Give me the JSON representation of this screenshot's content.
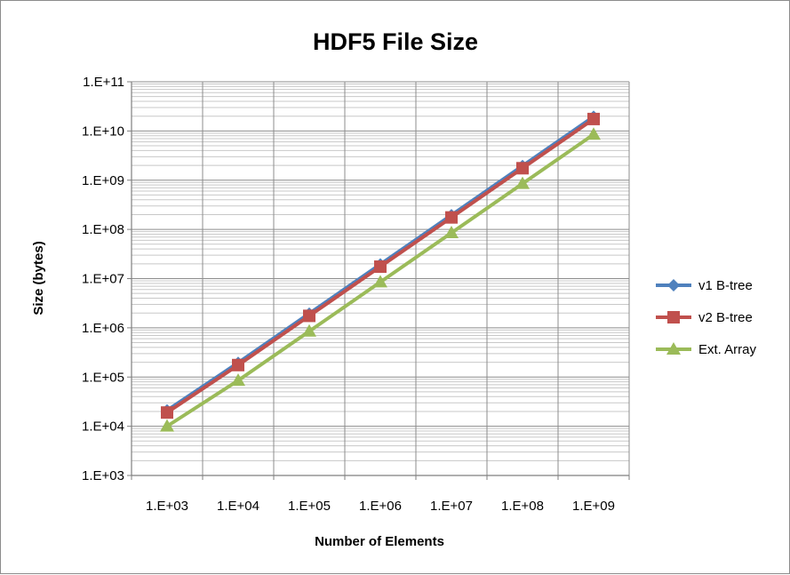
{
  "chart_data": {
    "type": "line",
    "title": "HDF5 File Size",
    "xlabel": "Number of Elements",
    "ylabel": "Size (bytes)",
    "x_scale": "log",
    "y_scale": "log",
    "categories": [
      "1.E+03",
      "1.E+04",
      "1.E+05",
      "1.E+06",
      "1.E+07",
      "1.E+08",
      "1.E+09"
    ],
    "x": [
      1000,
      10000,
      100000,
      1000000,
      10000000,
      100000000,
      1000000000
    ],
    "y_ticks": [
      "1.E+03",
      "1.E+04",
      "1.E+05",
      "1.E+06",
      "1.E+07",
      "1.E+08",
      "1.E+09",
      "1.E+10",
      "1.E+11"
    ],
    "ylim": [
      1000,
      100000000000
    ],
    "grid": true,
    "legend_position": "right",
    "series": [
      {
        "name": "v1 B-tree",
        "color": "#4f81bd",
        "marker": "diamond",
        "values": [
          21000,
          195000,
          1950000,
          19500000,
          195000000,
          1950000000,
          19500000000
        ]
      },
      {
        "name": "v2 B-tree",
        "color": "#c0504d",
        "marker": "square",
        "values": [
          19000,
          175000,
          1750000,
          17500000,
          175000000,
          1750000000,
          17500000000
        ]
      },
      {
        "name": "Ext. Array",
        "color": "#9bbb59",
        "marker": "triangle",
        "values": [
          10000,
          85000,
          850000,
          8500000,
          85000000,
          850000000,
          8500000000
        ]
      }
    ]
  }
}
